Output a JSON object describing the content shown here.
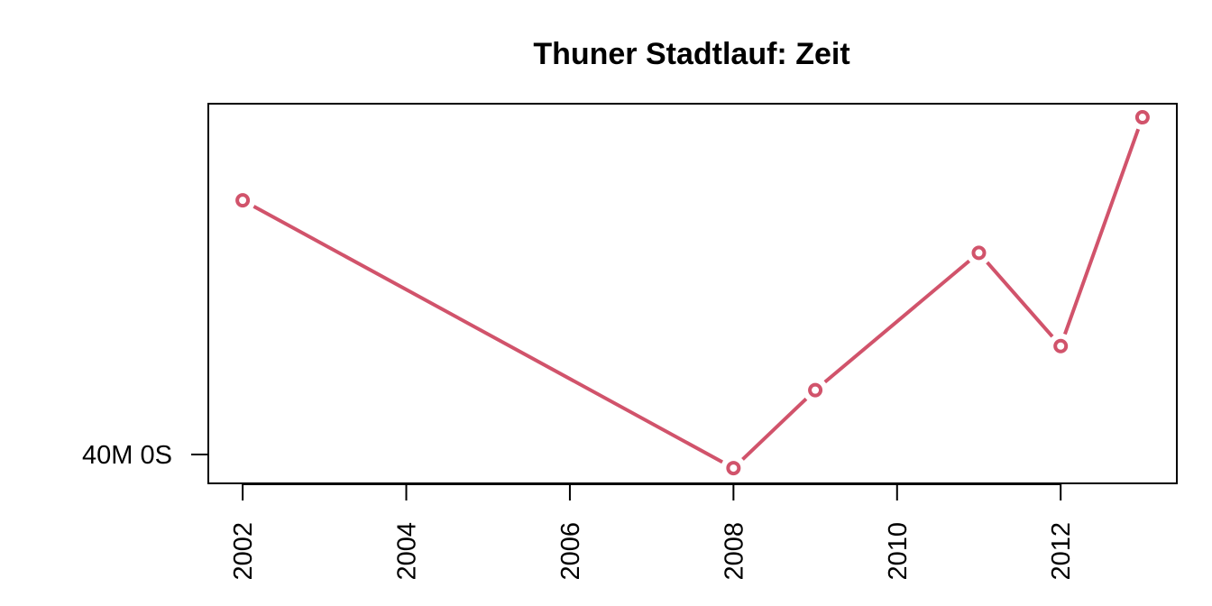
{
  "chart_data": {
    "type": "line",
    "title": "Thuner Stadtlauf: Zeit",
    "xlabel": "",
    "ylabel": "",
    "x": [
      2002,
      2008,
      2009,
      2011,
      2012,
      2013
    ],
    "series": [
      {
        "values": [
          2550,
          2392,
          2438,
          2519,
          2464,
          2599
        ],
        "unit": "seconds"
      }
    ],
    "xlim": [
      2001.58,
      2013.42
    ],
    "ylim": [
      2383,
      2607
    ],
    "x_ticks": [
      2002,
      2004,
      2006,
      2008,
      2010,
      2012
    ],
    "x_tick_labels": [
      "2002",
      "2004",
      "2006",
      "2008",
      "2010",
      "2012"
    ],
    "y_ticks": [
      2400
    ],
    "y_tick_labels": [
      "40M 0S"
    ],
    "grid": false,
    "legend": "none",
    "color": "#d1536b",
    "marker": "open-circle"
  }
}
